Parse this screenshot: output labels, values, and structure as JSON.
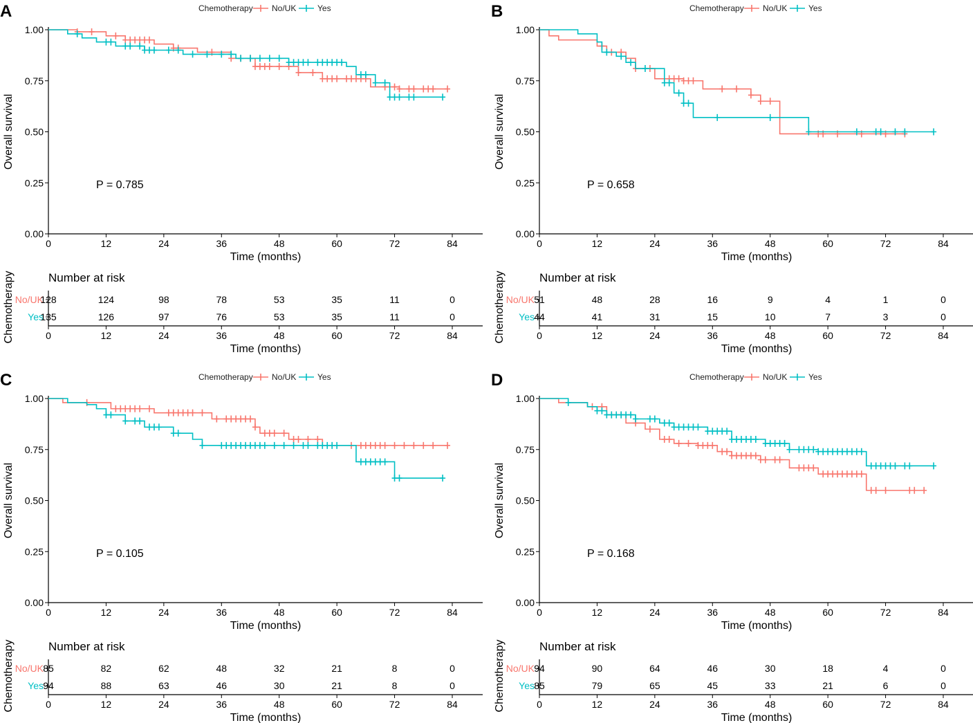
{
  "colors": {
    "no_uk": "#F8766D",
    "yes": "#00BFC4"
  },
  "chart_data": [
    {
      "type": "line",
      "panel": "A",
      "legend_title": "Chemotherapy",
      "legend_items": [
        "No/UK",
        "Yes"
      ],
      "xlabel": "Time (months)",
      "ylabel": "Overall survival",
      "x_ticks": [
        0,
        12,
        24,
        36,
        48,
        60,
        72,
        84
      ],
      "y_ticks": [
        "0.00",
        "0.25",
        "0.50",
        "0.75",
        "1.00"
      ],
      "xlim": [
        0,
        88
      ],
      "ylim": [
        0,
        1
      ],
      "p_value": "P = 0.785",
      "risk_title": "Number at risk",
      "risk_side_label": "Chemotherapy",
      "series": [
        {
          "name": "No/UK",
          "color_key": "no_uk",
          "steps": [
            [
              0,
              1
            ],
            [
              6,
              0.99
            ],
            [
              12,
              0.97
            ],
            [
              16,
              0.95
            ],
            [
              22,
              0.93
            ],
            [
              26,
              0.91
            ],
            [
              31,
              0.89
            ],
            [
              38,
              0.86
            ],
            [
              43,
              0.82
            ],
            [
              52,
              0.79
            ],
            [
              57,
              0.76
            ],
            [
              67,
              0.72
            ],
            [
              73,
              0.71
            ],
            [
              83,
              0.71
            ]
          ],
          "censors": [
            6,
            9,
            14,
            16,
            17,
            18,
            19,
            20,
            21,
            26,
            27,
            34,
            38,
            40,
            42,
            43,
            44,
            45,
            46,
            48,
            50,
            52,
            55,
            57,
            58,
            59,
            60,
            62,
            63,
            64,
            65,
            66,
            70,
            72,
            73,
            75,
            76,
            78,
            79,
            80,
            83
          ]
        },
        {
          "name": "Yes",
          "color_key": "yes",
          "steps": [
            [
              0,
              1
            ],
            [
              4,
              0.98
            ],
            [
              7,
              0.96
            ],
            [
              10,
              0.94
            ],
            [
              14,
              0.92
            ],
            [
              20,
              0.9
            ],
            [
              28,
              0.88
            ],
            [
              33,
              0.88
            ],
            [
              39,
              0.86
            ],
            [
              50,
              0.84
            ],
            [
              62,
              0.82
            ],
            [
              64,
              0.78
            ],
            [
              68,
              0.74
            ],
            [
              71,
              0.67
            ],
            [
              82,
              0.67
            ]
          ],
          "censors": [
            6,
            12,
            13,
            16,
            17,
            19,
            20,
            21,
            22,
            25,
            27,
            30,
            33,
            36,
            38,
            40,
            42,
            44,
            46,
            48,
            50,
            51,
            52,
            53,
            54,
            56,
            57,
            58,
            59,
            60,
            61,
            65,
            66,
            68,
            70,
            71,
            72,
            73,
            75,
            76,
            82
          ]
        }
      ],
      "risk_table": {
        "times": [
          0,
          12,
          24,
          36,
          48,
          60,
          72,
          84
        ],
        "rows": [
          {
            "label": "No/UK",
            "color_key": "no_uk",
            "counts": [
              "128",
              "124",
              "98",
              "78",
              "53",
              "35",
              "11",
              "0"
            ]
          },
          {
            "label": "Yes",
            "color_key": "yes",
            "counts": [
              "135",
              "126",
              "97",
              "76",
              "53",
              "35",
              "11",
              "0"
            ]
          }
        ]
      }
    },
    {
      "type": "line",
      "panel": "B",
      "legend_title": "Chemotherapy",
      "legend_items": [
        "No/UK",
        "Yes"
      ],
      "xlabel": "Time (months)",
      "ylabel": "Overall survival",
      "x_ticks": [
        0,
        12,
        24,
        36,
        48,
        60,
        72,
        84
      ],
      "y_ticks": [
        "0.00",
        "0.25",
        "0.50",
        "0.75",
        "1.00"
      ],
      "xlim": [
        0,
        88
      ],
      "ylim": [
        0,
        1
      ],
      "p_value": "P = 0.658",
      "risk_title": "Number at risk",
      "risk_side_label": "Chemotherapy",
      "series": [
        {
          "name": "No/UK",
          "color_key": "no_uk",
          "steps": [
            [
              0,
              1
            ],
            [
              2,
              0.97
            ],
            [
              4,
              0.95
            ],
            [
              12,
              0.92
            ],
            [
              14,
              0.89
            ],
            [
              18,
              0.86
            ],
            [
              20,
              0.81
            ],
            [
              24,
              0.76
            ],
            [
              30,
              0.75
            ],
            [
              34,
              0.71
            ],
            [
              44,
              0.68
            ],
            [
              46,
              0.65
            ],
            [
              50,
              0.49
            ],
            [
              76,
              0.49
            ]
          ],
          "censors": [
            13,
            15,
            17,
            20,
            23,
            27,
            28,
            29,
            30,
            31,
            32,
            38,
            41,
            44,
            46,
            48,
            58,
            59,
            62,
            67,
            72,
            76
          ]
        },
        {
          "name": "Yes",
          "color_key": "yes",
          "steps": [
            [
              0,
              1
            ],
            [
              8,
              0.98
            ],
            [
              12,
              0.94
            ],
            [
              13,
              0.89
            ],
            [
              16,
              0.87
            ],
            [
              18,
              0.84
            ],
            [
              20,
              0.81
            ],
            [
              26,
              0.74
            ],
            [
              28,
              0.69
            ],
            [
              30,
              0.64
            ],
            [
              32,
              0.57
            ],
            [
              48,
              0.57
            ],
            [
              56,
              0.5
            ],
            [
              82,
              0.5
            ]
          ],
          "censors": [
            14,
            17,
            19,
            22,
            26,
            27,
            29,
            30,
            31,
            37,
            48,
            56,
            66,
            70,
            71,
            74,
            76,
            82
          ]
        }
      ],
      "risk_table": {
        "times": [
          0,
          12,
          24,
          36,
          48,
          60,
          72,
          84
        ],
        "rows": [
          {
            "label": "No/UK",
            "color_key": "no_uk",
            "counts": [
              "51",
              "48",
              "28",
              "16",
              "9",
              "4",
              "1",
              "0"
            ]
          },
          {
            "label": "Yes",
            "color_key": "yes",
            "counts": [
              "44",
              "41",
              "31",
              "15",
              "10",
              "7",
              "3",
              "0"
            ]
          }
        ]
      }
    },
    {
      "type": "line",
      "panel": "C",
      "legend_title": "Chemotherapy",
      "legend_items": [
        "No/UK",
        "Yes"
      ],
      "xlabel": "Time (months)",
      "ylabel": "Overall survival",
      "x_ticks": [
        0,
        12,
        24,
        36,
        48,
        60,
        72,
        84
      ],
      "y_ticks": [
        "0.00",
        "0.25",
        "0.50",
        "0.75",
        "1.00"
      ],
      "xlim": [
        0,
        88
      ],
      "ylim": [
        0,
        1
      ],
      "p_value": "P = 0.105",
      "risk_title": "Number at risk",
      "risk_side_label": "Chemotherapy",
      "series": [
        {
          "name": "No/UK",
          "color_key": "no_uk",
          "steps": [
            [
              0,
              1
            ],
            [
              3,
              0.98
            ],
            [
              13,
              0.95
            ],
            [
              22,
              0.93
            ],
            [
              34,
              0.9
            ],
            [
              43,
              0.86
            ],
            [
              44,
              0.83
            ],
            [
              50,
              0.8
            ],
            [
              57,
              0.77
            ],
            [
              83,
              0.77
            ]
          ],
          "censors": [
            8,
            14,
            15,
            16,
            17,
            18,
            19,
            21,
            25,
            26,
            27,
            28,
            29,
            30,
            32,
            35,
            37,
            38,
            39,
            40,
            41,
            42,
            43,
            45,
            46,
            47,
            49,
            51,
            52,
            54,
            56,
            63,
            65,
            66,
            67,
            68,
            69,
            70,
            72,
            74,
            76,
            78,
            80,
            83
          ]
        },
        {
          "name": "Yes",
          "color_key": "yes",
          "steps": [
            [
              0,
              1
            ],
            [
              4,
              0.98
            ],
            [
              8,
              0.97
            ],
            [
              10,
              0.95
            ],
            [
              12,
              0.92
            ],
            [
              16,
              0.89
            ],
            [
              20,
              0.86
            ],
            [
              26,
              0.83
            ],
            [
              30,
              0.8
            ],
            [
              32,
              0.77
            ],
            [
              63,
              0.77
            ],
            [
              64,
              0.69
            ],
            [
              72,
              0.61
            ],
            [
              82,
              0.61
            ]
          ],
          "censors": [
            12,
            13,
            16,
            18,
            19,
            21,
            22,
            23,
            26,
            27,
            32,
            36,
            37,
            38,
            39,
            40,
            41,
            42,
            43,
            44,
            45,
            47,
            49,
            51,
            53,
            54,
            56,
            57,
            58,
            59,
            60,
            65,
            66,
            67,
            68,
            69,
            70,
            72,
            73,
            82
          ]
        }
      ],
      "risk_table": {
        "times": [
          0,
          12,
          24,
          36,
          48,
          60,
          72,
          84
        ],
        "rows": [
          {
            "label": "No/UK",
            "color_key": "no_uk",
            "counts": [
              "85",
              "82",
              "62",
              "48",
              "32",
              "21",
              "8",
              "0"
            ]
          },
          {
            "label": "Yes",
            "color_key": "yes",
            "counts": [
              "94",
              "88",
              "63",
              "46",
              "30",
              "21",
              "8",
              "0"
            ]
          }
        ]
      }
    },
    {
      "type": "line",
      "panel": "D",
      "legend_title": "Chemotherapy",
      "legend_items": [
        "No/UK",
        "Yes"
      ],
      "xlabel": "Time (months)",
      "ylabel": "Overall survival",
      "x_ticks": [
        0,
        12,
        24,
        36,
        48,
        60,
        72,
        84
      ],
      "y_ticks": [
        "0.00",
        "0.25",
        "0.50",
        "0.75",
        "1.00"
      ],
      "xlim": [
        0,
        88
      ],
      "ylim": [
        0,
        1
      ],
      "p_value": "P = 0.168",
      "risk_title": "Number at risk",
      "risk_side_label": "Chemotherapy",
      "series": [
        {
          "name": "No/UK",
          "color_key": "no_uk",
          "steps": [
            [
              0,
              1
            ],
            [
              4,
              0.98
            ],
            [
              10,
              0.96
            ],
            [
              14,
              0.92
            ],
            [
              18,
              0.88
            ],
            [
              22,
              0.85
            ],
            [
              25,
              0.8
            ],
            [
              28,
              0.78
            ],
            [
              33,
              0.77
            ],
            [
              37,
              0.74
            ],
            [
              40,
              0.72
            ],
            [
              46,
              0.7
            ],
            [
              52,
              0.66
            ],
            [
              58,
              0.63
            ],
            [
              67,
              0.63
            ],
            [
              68,
              0.55
            ],
            [
              80,
              0.55
            ]
          ],
          "censors": [
            11,
            13,
            15,
            17,
            20,
            23,
            26,
            27,
            29,
            31,
            33,
            34,
            35,
            36,
            38,
            39,
            40,
            41,
            42,
            43,
            44,
            45,
            46,
            47,
            49,
            50,
            54,
            55,
            56,
            57,
            59,
            60,
            61,
            62,
            63,
            64,
            65,
            66,
            67,
            69,
            70,
            72,
            77,
            78,
            80
          ]
        },
        {
          "name": "Yes",
          "color_key": "yes",
          "steps": [
            [
              0,
              1
            ],
            [
              6,
              0.98
            ],
            [
              10,
              0.96
            ],
            [
              12,
              0.94
            ],
            [
              14,
              0.92
            ],
            [
              20,
              0.9
            ],
            [
              25,
              0.88
            ],
            [
              28,
              0.86
            ],
            [
              35,
              0.84
            ],
            [
              40,
              0.8
            ],
            [
              47,
              0.78
            ],
            [
              52,
              0.75
            ],
            [
              58,
              0.74
            ],
            [
              68,
              0.67
            ],
            [
              82,
              0.67
            ]
          ],
          "censors": [
            6,
            12,
            13,
            14,
            15,
            16,
            17,
            18,
            19,
            20,
            23,
            24,
            26,
            27,
            28,
            29,
            30,
            31,
            32,
            33,
            35,
            36,
            37,
            38,
            39,
            40,
            41,
            42,
            43,
            44,
            45,
            47,
            48,
            49,
            50,
            51,
            52,
            54,
            55,
            56,
            57,
            58,
            59,
            60,
            61,
            62,
            63,
            64,
            65,
            66,
            67,
            69,
            70,
            71,
            72,
            73,
            74,
            76,
            77,
            82
          ]
        }
      ],
      "risk_table": {
        "times": [
          0,
          12,
          24,
          36,
          48,
          60,
          72,
          84
        ],
        "rows": [
          {
            "label": "No/UK",
            "color_key": "no_uk",
            "counts": [
              "94",
              "90",
              "64",
              "46",
              "30",
              "18",
              "4",
              "0"
            ]
          },
          {
            "label": "Yes",
            "color_key": "yes",
            "counts": [
              "85",
              "79",
              "65",
              "45",
              "33",
              "21",
              "6",
              "0"
            ]
          }
        ]
      }
    }
  ]
}
